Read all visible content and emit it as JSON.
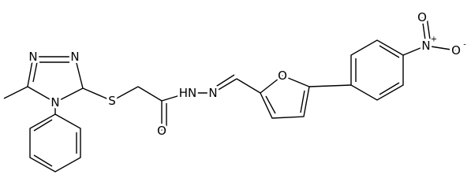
{
  "atoms": [
    {
      "label": "N"
    },
    {
      "label": "N"
    },
    {
      "label": "N"
    },
    {
      "label": "S"
    },
    {
      "label": "O"
    },
    {
      "label": "HN"
    },
    {
      "label": "N"
    },
    {
      "label": "O"
    },
    {
      "label": "N",
      "charge": "+"
    },
    {
      "label": "O"
    },
    {
      "label": "O",
      "charge": "-"
    }
  ]
}
